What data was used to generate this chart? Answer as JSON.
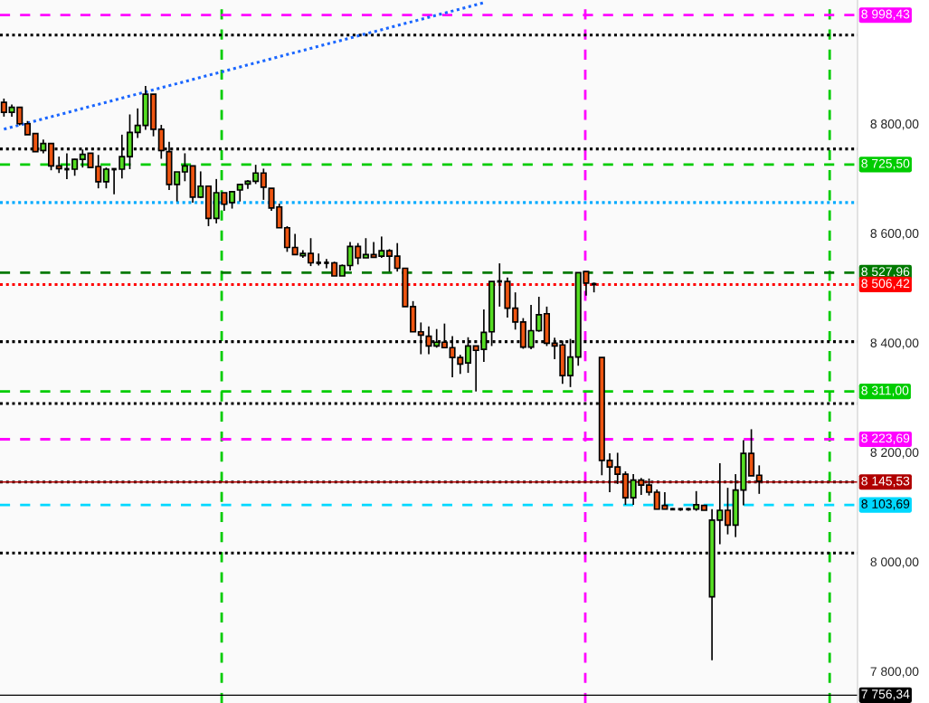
{
  "chart_data": {
    "type": "candlestick",
    "categories": [
      null,
      null,
      null,
      null,
      null,
      null,
      null,
      null,
      null,
      null,
      null,
      null,
      null,
      null,
      null,
      null,
      null,
      null,
      null,
      null,
      null,
      null,
      null,
      null,
      null,
      null,
      null,
      null,
      null,
      null,
      null,
      null,
      null,
      null,
      null,
      null,
      null,
      null,
      null,
      null,
      null,
      null,
      null,
      null,
      null,
      null,
      null,
      null,
      null,
      null,
      null,
      null,
      null,
      null,
      null,
      null,
      null,
      null,
      null,
      null,
      null,
      null,
      null,
      null,
      null,
      null,
      null,
      null,
      null,
      null,
      null,
      null,
      null,
      null,
      null,
      null,
      null,
      null,
      null,
      null,
      null,
      null,
      null,
      null,
      null,
      null,
      null,
      null,
      null,
      null,
      null,
      null,
      null,
      null,
      null,
      null,
      null,
      null,
      null,
      null,
      null,
      null,
      null,
      null,
      null,
      null,
      null,
      null,
      null
    ],
    "ohlc": [
      [
        8839,
        8846,
        8813,
        8821
      ],
      [
        8821,
        8835,
        8813,
        8830
      ],
      [
        8830,
        8831,
        8797,
        8800
      ],
      [
        8800,
        8805,
        8780,
        8780
      ],
      [
        8782,
        8782,
        8749,
        8749
      ],
      [
        8751,
        8771,
        8746,
        8764
      ],
      [
        8764,
        8764,
        8715,
        8723
      ],
      [
        8723,
        8740,
        8710,
        8718
      ],
      [
        8717,
        8746,
        8699,
        8717
      ],
      [
        8717,
        8736,
        8705,
        8735
      ],
      [
        8735,
        8753,
        8720,
        8744
      ],
      [
        8746,
        8746,
        8720,
        8720
      ],
      [
        8722,
        8743,
        8682,
        8694
      ],
      [
        8694,
        8720,
        8682,
        8717
      ],
      [
        8717,
        8717,
        8671,
        8717
      ],
      [
        8717,
        8780,
        8700,
        8740
      ],
      [
        8740,
        8817,
        8717,
        8784
      ],
      [
        8784,
        8828,
        8774,
        8797
      ],
      [
        8797,
        8869,
        8789,
        8854
      ],
      [
        8854,
        8854,
        8777,
        8790
      ],
      [
        8790,
        8798,
        8736,
        8751
      ],
      [
        8749,
        8767,
        8679,
        8689
      ],
      [
        8689,
        8712,
        8658,
        8712
      ],
      [
        8712,
        8746,
        8695,
        8723
      ],
      [
        8723,
        8723,
        8656,
        8666
      ],
      [
        8666,
        8713,
        8664,
        8686
      ],
      [
        8686,
        8687,
        8613,
        8627
      ],
      [
        8627,
        8699,
        8618,
        8674
      ],
      [
        8674,
        8674,
        8641,
        8653
      ],
      [
        8656,
        8677,
        8645,
        8676
      ],
      [
        8679,
        8690,
        8658,
        8689
      ],
      [
        8690,
        8697,
        8681,
        8695
      ],
      [
        8695,
        8725,
        8690,
        8710
      ],
      [
        8710,
        8718,
        8661,
        8684
      ],
      [
        8682,
        8682,
        8641,
        8646
      ],
      [
        8648,
        8654,
        8610,
        8610
      ],
      [
        8610,
        8613,
        8566,
        8574
      ],
      [
        8574,
        8599,
        8561,
        8561
      ],
      [
        8559,
        8569,
        8555,
        8563
      ],
      [
        8563,
        8591,
        8540,
        8546
      ],
      [
        8546,
        8563,
        8541,
        8546
      ],
      [
        8546,
        8553,
        8536,
        8546
      ],
      [
        8546,
        8548,
        8522,
        8522
      ],
      [
        8522,
        8543,
        8522,
        8541
      ],
      [
        8541,
        8584,
        8532,
        8576
      ],
      [
        8576,
        8582,
        8543,
        8555
      ],
      [
        8555,
        8591,
        8555,
        8561
      ],
      [
        8561,
        8584,
        8555,
        8556
      ],
      [
        8558,
        8594,
        8555,
        8568
      ],
      [
        8568,
        8571,
        8530,
        8558
      ],
      [
        8558,
        8582,
        8530,
        8536
      ],
      [
        8536,
        8536,
        8466,
        8466
      ],
      [
        8466,
        8476,
        8420,
        8420
      ],
      [
        8420,
        8437,
        8379,
        8414
      ],
      [
        8412,
        8430,
        8379,
        8394
      ],
      [
        8394,
        8425,
        8391,
        8401
      ],
      [
        8401,
        8435,
        8391,
        8391
      ],
      [
        8391,
        8412,
        8337,
        8373
      ],
      [
        8373,
        8378,
        8343,
        8361
      ],
      [
        8363,
        8410,
        8345,
        8394
      ],
      [
        8394,
        8394,
        8311,
        8386
      ],
      [
        8388,
        8461,
        8365,
        8419
      ],
      [
        8420,
        8512,
        8394,
        8512
      ],
      [
        8512,
        8545,
        8466,
        8512
      ],
      [
        8512,
        8519,
        8446,
        8463
      ],
      [
        8463,
        8492,
        8424,
        8438
      ],
      [
        8438,
        8445,
        8389,
        8392
      ],
      [
        8392,
        8469,
        8388,
        8422
      ],
      [
        8422,
        8484,
        8420,
        8451
      ],
      [
        8453,
        8466,
        8394,
        8399
      ],
      [
        8399,
        8409,
        8370,
        8394
      ],
      [
        8396,
        8404,
        8325,
        8340
      ],
      [
        8340,
        8407,
        8319,
        8374
      ],
      [
        8374,
        8528,
        8358,
        8528
      ],
      [
        8530,
        8530,
        8486,
        8509
      ],
      [
        8507,
        8510,
        8492,
        8507
      ],
      [
        8373,
        8373,
        8158,
        8185
      ],
      [
        8185,
        8198,
        8127,
        8173
      ],
      [
        8173,
        8199,
        8142,
        8160
      ],
      [
        8160,
        8165,
        8104,
        8117
      ],
      [
        8117,
        8160,
        8104,
        8149
      ],
      [
        8149,
        8153,
        8122,
        8140
      ],
      [
        8140,
        8152,
        8121,
        8127
      ],
      [
        8127,
        8132,
        8096,
        8096
      ],
      [
        8103,
        8127,
        8096,
        8096
      ],
      [
        8096,
        8098,
        8094,
        8096
      ],
      [
        8096,
        8098,
        8093,
        8096
      ],
      [
        8096,
        8098,
        8093,
        8096
      ],
      [
        8096,
        8129,
        8093,
        8104
      ],
      [
        8103,
        8103,
        8094,
        8094
      ],
      [
        7936,
        8096,
        7820,
        8076
      ],
      [
        8076,
        8180,
        8032,
        8094
      ],
      [
        8094,
        8135,
        8050,
        8067
      ],
      [
        8067,
        8160,
        8045,
        8131
      ],
      [
        8131,
        8222,
        8103,
        8198
      ],
      [
        8198,
        8242,
        8157,
        8157
      ],
      [
        8158,
        8176,
        8124,
        8147
      ],
      null,
      null,
      null,
      null,
      null,
      null,
      null,
      null,
      null,
      null,
      null,
      null
    ],
    "series": [
      {
        "type": "line",
        "color": "#1a66ff",
        "line_style": "dotted",
        "values": [
          8790,
          null,
          null,
          null,
          null,
          null,
          null,
          null,
          null,
          null,
          null,
          null,
          null,
          null,
          null,
          null,
          null,
          null,
          null,
          null,
          null,
          null,
          null,
          null,
          null,
          null,
          null,
          null,
          null,
          null,
          null,
          null,
          null,
          null,
          null,
          null,
          null,
          null,
          null,
          null,
          null,
          null,
          null,
          null,
          null,
          null,
          null,
          null,
          null,
          null,
          null,
          null,
          null,
          null,
          null,
          null,
          null,
          null,
          null,
          null,
          null,
          9021,
          null,
          null,
          null,
          null,
          null,
          null,
          null,
          null,
          null,
          null,
          null,
          null,
          null,
          null,
          null,
          null,
          null,
          null,
          null,
          null,
          null,
          null,
          null,
          null,
          null,
          null,
          null,
          null,
          null,
          null,
          null,
          null,
          null,
          null,
          null,
          null,
          null,
          null,
          null,
          null,
          null,
          null,
          null,
          null,
          null,
          null,
          null
        ]
      }
    ],
    "ylim": [
      7742,
      9026
    ],
    "yticks": [
      {
        "value": 7800,
        "label": "7 800,00"
      },
      {
        "value": 8000,
        "label": "8 000,00"
      },
      {
        "value": 8200,
        "label": "8 200,00"
      },
      {
        "value": 8400,
        "label": "8 400,00"
      },
      {
        "value": 8600,
        "label": "8 600,00"
      },
      {
        "value": 8800,
        "label": "8 800,00"
      }
    ],
    "tick_labels": "y",
    "grid": false,
    "legend": false,
    "ref_lines": [
      {
        "axis": "y",
        "value": 8998.43,
        "label": "8 998,43",
        "color": "#ff00ff",
        "line_style": "dashed"
      },
      {
        "axis": "y",
        "value": 8962,
        "color": "#000000",
        "line_style": "dotted"
      },
      {
        "axis": "y",
        "value": 8754,
        "color": "#000000",
        "line_style": "dotted"
      },
      {
        "axis": "y",
        "value": 8725.5,
        "label": "8 725,50",
        "color": "#00cc00",
        "line_style": "dashed"
      },
      {
        "axis": "y",
        "value": 8656,
        "color": "#00aaff",
        "line_style": "dotted"
      },
      {
        "axis": "y",
        "value": 8527.96,
        "label": "8 527,96",
        "color": "#007a00",
        "line_style": "dashed"
      },
      {
        "axis": "y",
        "value": 8506.42,
        "label": "8 506,42",
        "color": "#ff0000",
        "line_style": "dotted"
      },
      {
        "axis": "y",
        "value": 8402,
        "color": "#000000",
        "line_style": "dotted"
      },
      {
        "axis": "y",
        "value": 8311,
        "label": "8 311,00",
        "color": "#00cc00",
        "line_style": "dashed"
      },
      {
        "axis": "y",
        "value": 8289,
        "color": "#000000",
        "line_style": "dotted"
      },
      {
        "axis": "y",
        "value": 8223.69,
        "label": "8 223,69",
        "color": "#ff00ff",
        "line_style": "dashed"
      },
      {
        "axis": "y",
        "value": 8145.53,
        "color": "#000000",
        "line_style": "dotted"
      },
      {
        "axis": "y",
        "value": 8145.53,
        "label": "8 145,53",
        "color": "#b00000",
        "line_style": "solid"
      },
      {
        "axis": "y",
        "value": 8103.69,
        "label": "8 103,69",
        "color": "#00d8ff",
        "line_style": "dashed"
      },
      {
        "axis": "y",
        "value": 8016,
        "color": "#000000",
        "line_style": "dotted"
      },
      {
        "axis": "y",
        "value": 7756.34,
        "label": "7 756,34",
        "color": "#000000",
        "line_style": "solid"
      }
    ]
  }
}
